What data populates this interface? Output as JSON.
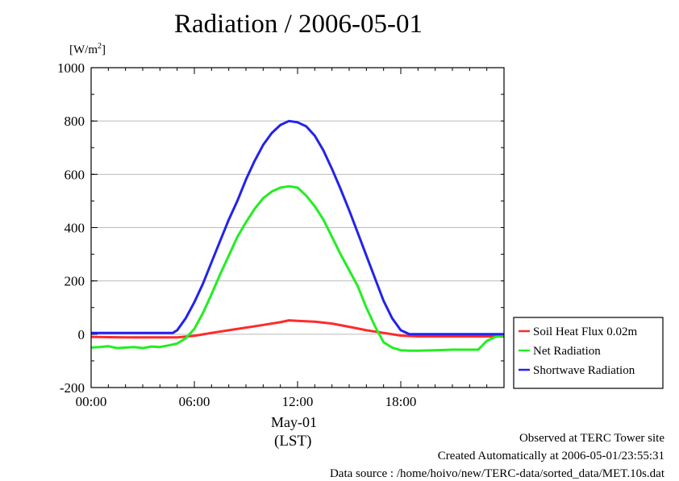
{
  "chart_data": {
    "type": "line",
    "title": "Radiation / 2006-05-01",
    "ylabel_unit_base": "[W/m",
    "ylabel_unit_sup": "2",
    "ylabel_unit_end": "]",
    "xlabel_date": "May-01",
    "xlabel_lst": "(LST)",
    "x_ticks_hours": [
      0,
      6,
      12,
      18
    ],
    "x_tick_labels": [
      "00:00",
      "06:00",
      "12:00",
      "18:00"
    ],
    "xlim_hours": [
      0,
      24
    ],
    "ylim": [
      -200,
      1000
    ],
    "y_ticks": [
      -200,
      0,
      200,
      400,
      600,
      800,
      1000
    ],
    "y_tick_labels": [
      "-200",
      "0",
      "200",
      "400",
      "600",
      "800",
      "1000"
    ],
    "grid": true,
    "legend_position": "bottom-right outside",
    "series": [
      {
        "name": "Soil Heat Flux 0.02m",
        "color": "#ff2a2a",
        "x_hours": [
          0,
          2,
          4,
          5,
          6,
          7,
          8,
          9,
          10,
          11,
          11.5,
          12,
          13,
          14,
          15,
          16,
          17,
          18,
          19,
          20,
          22,
          24
        ],
        "values": [
          -10,
          -12,
          -12,
          -12,
          -6,
          5,
          15,
          25,
          35,
          45,
          52,
          50,
          47,
          40,
          28,
          15,
          5,
          -5,
          -8,
          -8,
          -8,
          -8
        ]
      },
      {
        "name": "Net Radiation",
        "color": "#22ee22",
        "x_hours": [
          0,
          0.5,
          1,
          1.5,
          2,
          2.5,
          3,
          3.5,
          4,
          4.5,
          5,
          5.5,
          6,
          6.5,
          7,
          7.5,
          8,
          8.5,
          9,
          9.5,
          10,
          10.5,
          11,
          11.5,
          12,
          12.5,
          13,
          13.5,
          14,
          14.5,
          15,
          15.5,
          16,
          16.5,
          17,
          17.5,
          18,
          18.5,
          19,
          20,
          21,
          22,
          22.5,
          23,
          23.5,
          24
        ],
        "values": [
          -50,
          -48,
          -45,
          -52,
          -50,
          -48,
          -52,
          -46,
          -48,
          -42,
          -35,
          -15,
          20,
          80,
          150,
          225,
          295,
          365,
          420,
          470,
          510,
          535,
          550,
          555,
          550,
          520,
          480,
          430,
          365,
          300,
          240,
          180,
          100,
          30,
          -30,
          -50,
          -60,
          -62,
          -62,
          -60,
          -58,
          -58,
          -58,
          -25,
          -10,
          -5
        ]
      },
      {
        "name": "Shortwave Radiation",
        "color": "#2222ee",
        "x_hours": [
          0,
          2,
          4,
          4.75,
          5,
          5.5,
          6,
          6.5,
          7,
          7.5,
          8,
          8.5,
          9,
          9.5,
          10,
          10.5,
          11,
          11.5,
          12,
          12.5,
          13,
          13.5,
          14,
          14.5,
          15,
          15.5,
          16,
          16.5,
          17,
          17.5,
          18,
          18.5,
          19,
          20,
          22,
          24
        ],
        "values": [
          5,
          5,
          5,
          5,
          15,
          60,
          120,
          190,
          270,
          350,
          430,
          500,
          580,
          650,
          710,
          755,
          785,
          800,
          795,
          780,
          745,
          690,
          620,
          545,
          465,
          380,
          295,
          210,
          125,
          60,
          15,
          0,
          0,
          0,
          0,
          0
        ]
      }
    ]
  },
  "footer": {
    "line1": "Observed at TERC Tower site",
    "line2": "Created Automatically at 2006-05-01/23:55:31",
    "line3": "Data source : /home/hoivo/new/TERC-data/sorted_data/MET.10s.dat"
  }
}
